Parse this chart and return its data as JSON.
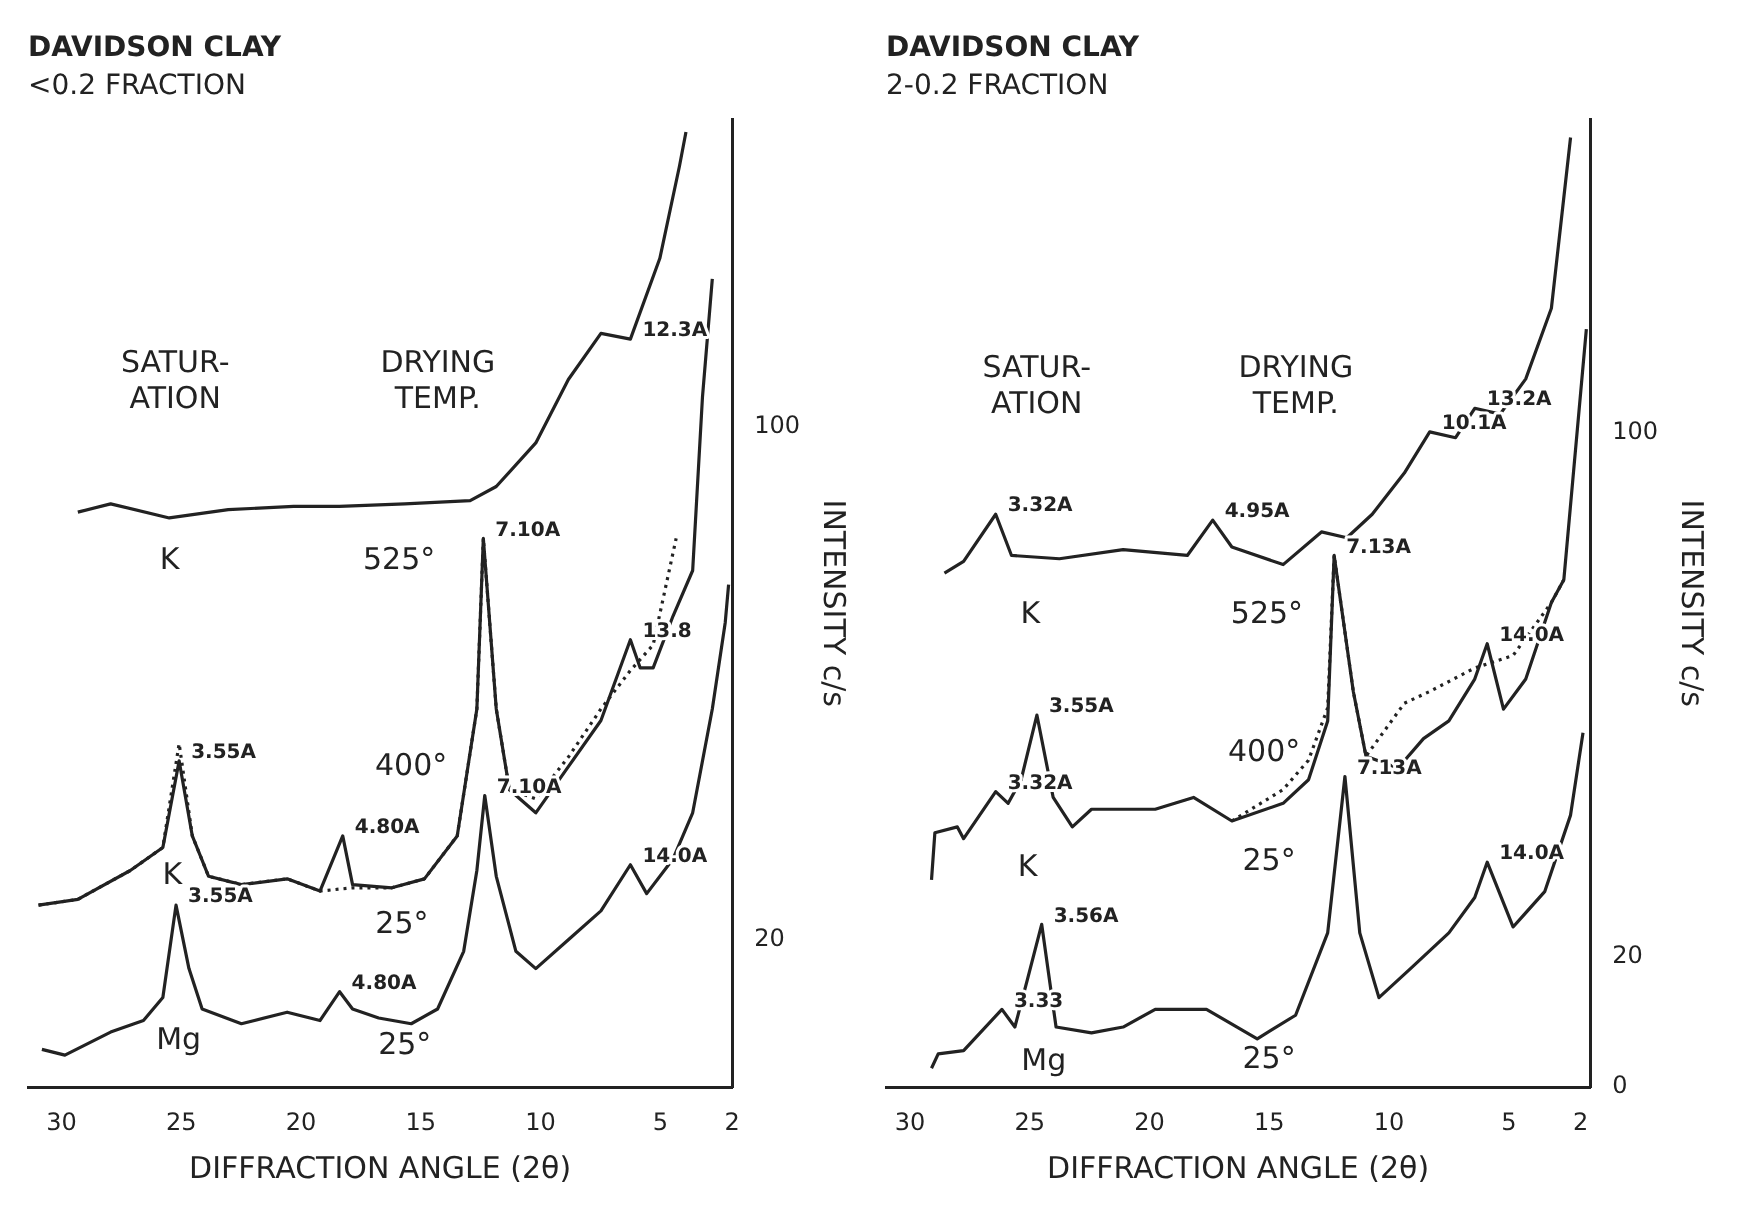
{
  "chart_data": [
    {
      "type": "line",
      "title": "DAVIDSON CLAY",
      "subtitle": "<0.2 FRACTION",
      "xlabel": "DIFFRACTION ANGLE (2θ)",
      "ylabel": "INTENSITY c/s",
      "xlim": [
        31.4,
        2
      ],
      "xticks": [
        30,
        25,
        20,
        15,
        10,
        5,
        2
      ],
      "ylim": [
        -3,
        148
      ],
      "yticks": [
        20,
        100
      ],
      "grid": false,
      "legend": false,
      "marker": "none",
      "series": [
        {
          "color": "#222222",
          "line_style": "solid",
          "x": [
            29.32,
            27.95,
            25.5,
            23.04,
            20.31,
            18.4,
            15.67,
            12.94,
            11.85,
            10.2,
            8.84,
            7.48,
            6.25,
            5.02,
            4.2,
            3.93
          ],
          "values": [
            86.7,
            88.0,
            85.8,
            87.1,
            87.6,
            87.6,
            88.0,
            88.5,
            90.7,
            97.5,
            107.4,
            114.6,
            113.7,
            126.3,
            140.7,
            146
          ]
        },
        {
          "color": "#222222",
          "line_style": "dotted",
          "x": [
            30.96,
            29.32,
            27.13,
            25.77,
            25.09,
            24.54,
            23.86,
            22.49,
            20.58,
            19.21,
            17.85,
            16.21,
            14.85,
            13.48,
            12.66,
            12.39,
            11.85,
            11.3,
            10.2,
            8.84,
            7.48,
            6.25,
            5.3,
            4.34
          ],
          "values": [
            25.4,
            26.3,
            30.8,
            34.4,
            50.6,
            36.2,
            29.9,
            28.6,
            29.5,
            27.6,
            28.1,
            28.1,
            29.5,
            36.2,
            56.0,
            82.6,
            56.0,
            43.4,
            42.0,
            48.5,
            56.0,
            62.0,
            66.0,
            82.6
          ]
        },
        {
          "color": "#222222",
          "line_style": "solid",
          "x": [
            30.96,
            29.32,
            27.13,
            25.77,
            25.09,
            24.54,
            23.86,
            22.49,
            20.58,
            19.21,
            18.26,
            17.85,
            16.21,
            14.85,
            13.48,
            12.66,
            12.39,
            11.85,
            11.3,
            10.2,
            8.84,
            7.48,
            6.25,
            5.84,
            5.3,
            4.47,
            3.65,
            3.24,
            2.83
          ],
          "values": [
            25.4,
            26.3,
            30.8,
            34.4,
            47.9,
            36.2,
            29.9,
            28.6,
            29.5,
            27.6,
            36.2,
            28.6,
            28.1,
            29.5,
            36.2,
            56.0,
            82.6,
            56.0,
            43.4,
            39.8,
            47.0,
            54.2,
            66.8,
            62.4,
            62.4,
            70.5,
            77.6,
            104.7,
            123.1
          ]
        },
        {
          "color": "#222222",
          "line_style": "solid",
          "x": [
            30.82,
            29.86,
            27.95,
            26.58,
            25.77,
            25.22,
            24.68,
            24.13,
            22.49,
            20.58,
            19.21,
            18.39,
            17.85,
            16.76,
            15.4,
            14.3,
            13.21,
            12.66,
            12.33,
            11.85,
            11.03,
            10.2,
            8.84,
            7.48,
            6.25,
            5.57,
            4.47,
            3.65,
            2.83,
            2.29,
            2.15
          ],
          "values": [
            2.9,
            2.0,
            5.6,
            7.4,
            11.0,
            25.4,
            15.5,
            9.2,
            6.9,
            8.7,
            7.4,
            11.9,
            9.2,
            7.8,
            6.9,
            9.2,
            18.2,
            30.8,
            42.5,
            29.9,
            18.2,
            15.5,
            20,
            24.5,
            31.7,
            27.2,
            32.6,
            39.8,
            56.0,
            69.5,
            75.4
          ]
        }
      ],
      "annotations": [
        "SATUR-\nATION",
        "DRYING\nTEMP.",
        "K",
        "525°",
        "400°",
        "K",
        "25°",
        "Mg",
        "25°",
        {
          "text": "12.3A",
          "x": 6.25,
          "y": 113.7
        },
        {
          "text": "7.10A",
          "x": 12.39,
          "y": 82.6
        },
        {
          "text": "13.8",
          "x": 6.25,
          "y": 66.8
        },
        {
          "text": "3.55A",
          "x": 25.09,
          "y": 47.9
        },
        {
          "text": "4.80A",
          "x": 18.26,
          "y": 36.2
        },
        {
          "text": "7.10A",
          "x": 12.33,
          "y": 42.5
        },
        {
          "text": "14.0A",
          "x": 6.25,
          "y": 31.7
        },
        {
          "text": "3.55A",
          "x": 25.22,
          "y": 25.4
        },
        {
          "text": "4.80A",
          "x": 18.39,
          "y": 11.9
        }
      ]
    },
    {
      "type": "line",
      "title": "DAVIDSON CLAY",
      "subtitle": "2-0.2 FRACTION",
      "xlabel": "DIFFRACTION ANGLE (2θ)",
      "ylabel": "INTENSITY c/s",
      "xlim": [
        31,
        1.6
      ],
      "xticks": [
        30,
        25,
        20,
        15,
        10,
        5,
        2
      ],
      "ylim": [
        0,
        148
      ],
      "yticks": [
        0,
        20,
        100
      ],
      "grid": false,
      "legend": false,
      "marker": "none",
      "series": [
        {
          "color": "#222222",
          "line_style": "solid",
          "x": [
            28.56,
            27.76,
            26.42,
            25.76,
            23.76,
            21.1,
            18.42,
            17.36,
            16.56,
            14.42,
            12.82,
            11.76,
            10.7,
            9.36,
            8.3,
            7.22,
            6.42,
            5.36,
            4.29,
            3.22,
            2.42
          ],
          "values": [
            78.6,
            80.4,
            87.6,
            81.3,
            80.8,
            82.2,
            81.3,
            86.7,
            82.6,
            79.9,
            84.9,
            84.0,
            87.6,
            93.9,
            100.2,
            99.3,
            103.8,
            102.9,
            108.3,
            119.1,
            145.2
          ]
        },
        {
          "color": "#222222",
          "line_style": "dotted",
          "x": [
            16.56,
            14.42,
            13.36,
            12.56,
            12.29,
            11.49,
            10.96,
            9.36,
            8.3,
            6.42,
            4.82,
            3.22,
            2.7
          ],
          "values": [
            40.7,
            45.5,
            50,
            58,
            81.3,
            60.5,
            50.6,
            58.7,
            60.5,
            64.1,
            66,
            74.1,
            77.6
          ]
        },
        {
          "color": "#222222",
          "line_style": "solid",
          "x": [
            29.1,
            28.96,
            28.02,
            27.76,
            26.42,
            25.9,
            25.36,
            24.7,
            24.02,
            23.22,
            22.42,
            19.76,
            18.16,
            16.56,
            14.42,
            13.36,
            12.56,
            12.29,
            11.49,
            10.96,
            9.62,
            8.56,
            7.5,
            6.42,
            5.9,
            5.22,
            4.29,
            3.22,
            2.7,
            1.76
          ],
          "values": [
            31.7,
            38.9,
            39.8,
            38.0,
            45.2,
            43.4,
            47.0,
            56.9,
            44.3,
            39.8,
            42.5,
            42.5,
            44.3,
            40.7,
            43.4,
            47.0,
            56.0,
            81.3,
            60.5,
            50.6,
            48.8,
            53.3,
            56.0,
            62.4,
            67.8,
            57.8,
            62.4,
            74.1,
            77.6,
            115.9
          ]
        },
        {
          "color": "#222222",
          "line_style": "solid",
          "x": [
            29.1,
            28.82,
            27.76,
            26.16,
            25.62,
            25.1,
            24.5,
            23.9,
            22.42,
            21.1,
            19.76,
            17.62,
            15.5,
            13.9,
            12.56,
            11.84,
            11.22,
            10.42,
            9.08,
            7.5,
            6.42,
            5.9,
            4.82,
            3.5,
            2.42,
            1.9
          ],
          "values": [
            2.9,
            5.1,
            5.6,
            11.9,
            9.2,
            16.4,
            24.9,
            9.2,
            8.3,
            9.2,
            11.9,
            11.9,
            7.4,
            11.0,
            23.6,
            47.5,
            23.6,
            13.7,
            18.2,
            23.6,
            29.0,
            34.4,
            24.5,
            29.9,
            41.6,
            54.2
          ]
        }
      ],
      "annotations": [
        "SATUR-\nATION",
        "DRYING\nTEMP.",
        "K",
        "525°",
        "400°",
        "K",
        "25°",
        "Mg",
        "25°",
        {
          "text": "3.32A",
          "x": 26.42,
          "y": 87.6
        },
        {
          "text": "4.95A",
          "x": 17.36,
          "y": 86.7
        },
        {
          "text": "13.2A",
          "x": 6.42,
          "y": 103.8
        },
        {
          "text": "10.1A",
          "x": 8.3,
          "y": 100.2
        },
        {
          "text": "7.13A",
          "x": 12.29,
          "y": 81.3
        },
        {
          "text": "14.0A",
          "x": 5.9,
          "y": 67.8
        },
        {
          "text": "3.55A",
          "x": 24.7,
          "y": 56.9
        },
        {
          "text": "3.32A",
          "x": 26.42,
          "y": 45.2
        },
        {
          "text": "7.13A",
          "x": 11.84,
          "y": 47.5
        },
        {
          "text": "14.0A",
          "x": 5.9,
          "y": 34.4
        },
        {
          "text": "3.56A",
          "x": 24.5,
          "y": 24.9
        },
        {
          "text": "3.33",
          "x": 26.16,
          "y": 11.9
        }
      ]
    }
  ]
}
